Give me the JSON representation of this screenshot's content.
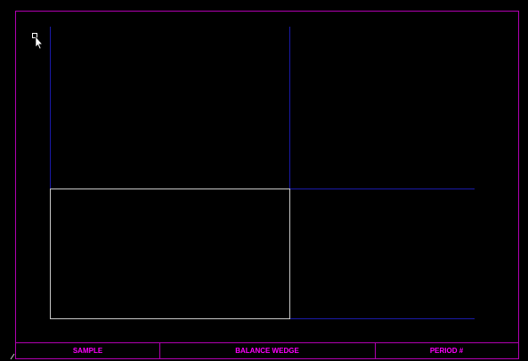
{
  "footer": {
    "sample_label": "SAMPLE",
    "wedge_label": "BALANCE WEDGE",
    "period_label": "PERIOD #"
  },
  "colors": {
    "background": "#000000",
    "border": "#b000b0",
    "label_text": "#ff00ff",
    "guide_lines": "#1a1aa8",
    "selection_box": "#c8c8c8",
    "cursor": "#ffffff"
  },
  "icons": {
    "cursor": "arrow-pointer-icon",
    "handle": "small-square-handle-icon"
  }
}
